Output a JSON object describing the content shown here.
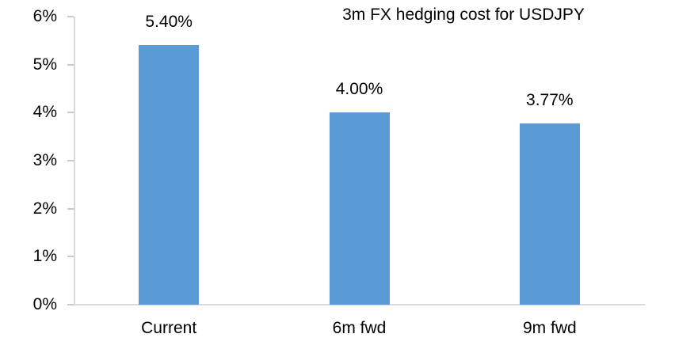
{
  "chart_data": {
    "type": "bar",
    "title": "3m FX hedging cost for USDJPY",
    "categories": [
      "Current",
      "6m fwd",
      "9m fwd"
    ],
    "values": [
      5.4,
      4.0,
      3.77
    ],
    "data_labels": [
      "5.40%",
      "4.00%",
      "3.77%"
    ],
    "y_ticks": [
      "0%",
      "1%",
      "2%",
      "3%",
      "4%",
      "5%",
      "6%"
    ],
    "ylim": [
      0,
      6
    ],
    "y_tick_step": 1,
    "xlabel": "",
    "ylabel": "",
    "grid": false,
    "legend": false,
    "colors": {
      "bar": "#5b9bd5",
      "axis_line": "#d9d9d9",
      "tick_mark": "#c9c9c9",
      "text": "#000000",
      "background": "#ffffff"
    }
  }
}
